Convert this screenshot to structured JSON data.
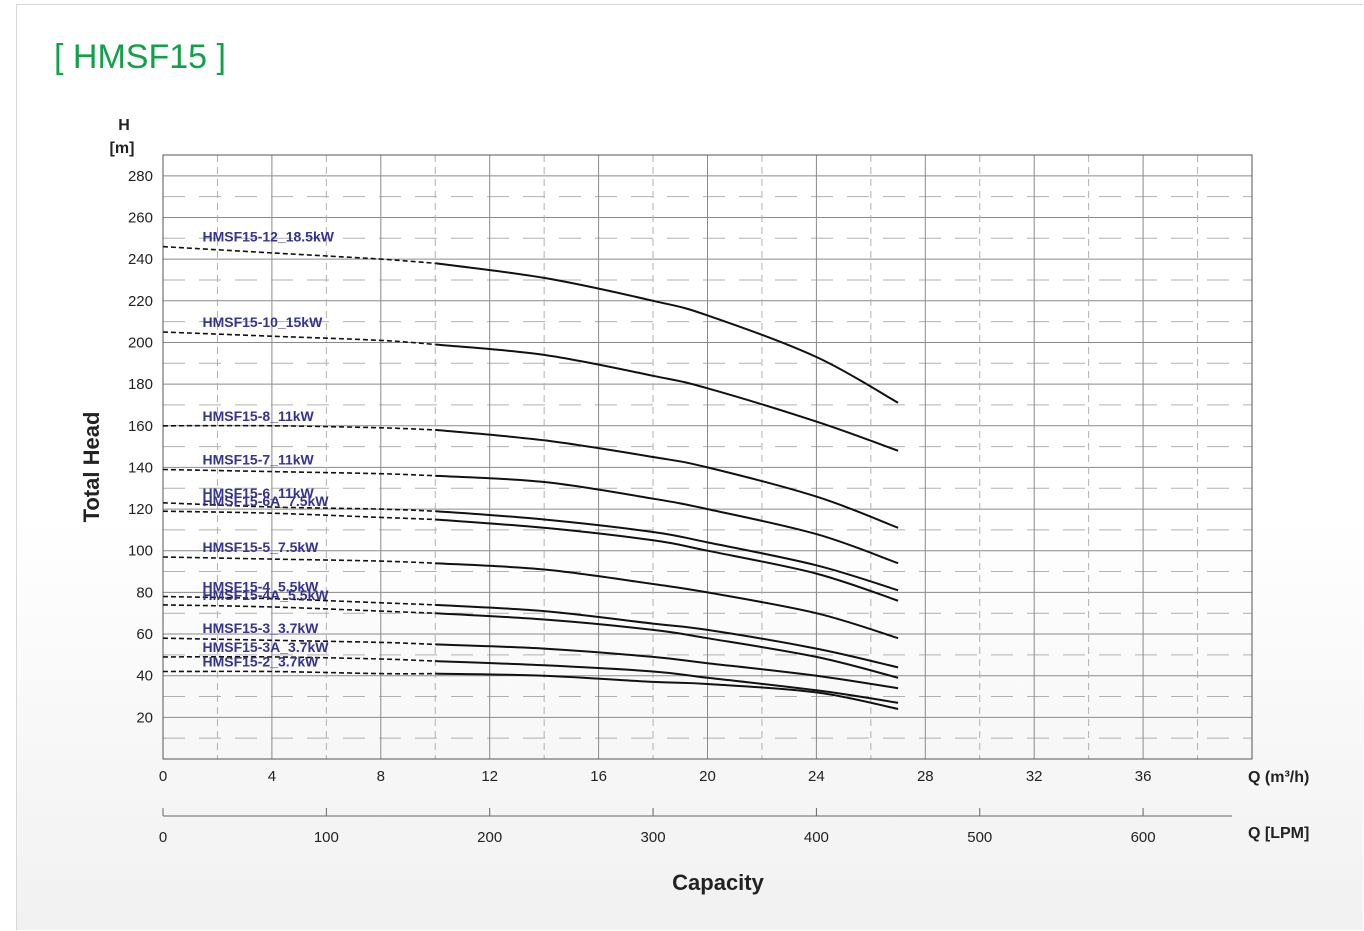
{
  "chart_data": {
    "type": "line",
    "title": "[ HMSF15 ]",
    "ylabel": "Total Head",
    "y_unit_top": "H",
    "y_unit_bottom": "[m]",
    "xlabel": "Capacity",
    "x_unit_primary": "Q (m³/h)",
    "x_unit_secondary": "Q [LPM]",
    "xlim": [
      0,
      40
    ],
    "ylim": [
      0,
      290
    ],
    "x_ticks": [
      0,
      4,
      8,
      12,
      16,
      20,
      24,
      28,
      32,
      36
    ],
    "y_ticks": [
      20,
      40,
      60,
      80,
      100,
      120,
      140,
      160,
      180,
      200,
      220,
      240,
      260,
      280
    ],
    "lpm_ticks": [
      0,
      100,
      200,
      300,
      400,
      500,
      600
    ],
    "grid": true,
    "dashed_until_x": 10,
    "series": [
      {
        "name": "HMSF15-12_18.5kW",
        "x": [
          0,
          4,
          8,
          10,
          14,
          18,
          20,
          24,
          27
        ],
        "y": [
          246,
          243,
          240,
          238,
          231,
          220,
          213,
          193,
          171
        ]
      },
      {
        "name": "HMSF15-10_15kW",
        "x": [
          0,
          4,
          8,
          10,
          14,
          18,
          20,
          24,
          27
        ],
        "y": [
          205,
          203,
          201,
          199,
          194,
          184,
          178,
          162,
          148
        ]
      },
      {
        "name": "HMSF15-8_11kW",
        "x": [
          0,
          4,
          8,
          10,
          14,
          18,
          20,
          24,
          27
        ],
        "y": [
          160,
          160,
          159,
          158,
          153,
          145,
          140,
          126,
          111
        ]
      },
      {
        "name": "HMSF15-7_11kW",
        "x": [
          0,
          4,
          8,
          10,
          14,
          18,
          20,
          24,
          27
        ],
        "y": [
          139,
          138,
          137,
          136,
          133,
          125,
          120,
          108,
          94
        ]
      },
      {
        "name": "HMSF15-6_11kW",
        "x": [
          0,
          4,
          8,
          10,
          14,
          18,
          20,
          24,
          27
        ],
        "y": [
          123,
          121,
          120,
          119,
          115,
          109,
          104,
          93,
          81
        ]
      },
      {
        "name": "HMSF15-6A_7.5kW",
        "x": [
          0,
          4,
          8,
          10,
          14,
          18,
          20,
          24,
          27
        ],
        "y": [
          119,
          118,
          116,
          115,
          111,
          105,
          100,
          89,
          76
        ]
      },
      {
        "name": "HMSF15-5_7.5kW",
        "x": [
          0,
          4,
          8,
          10,
          14,
          18,
          20,
          24,
          27
        ],
        "y": [
          97,
          96,
          95,
          94,
          91,
          84,
          80,
          70,
          58
        ]
      },
      {
        "name": "HMSF15-4_5.5kW",
        "x": [
          0,
          4,
          8,
          10,
          14,
          18,
          20,
          24,
          27
        ],
        "y": [
          78,
          77,
          75,
          74,
          71,
          65,
          62,
          53,
          44
        ]
      },
      {
        "name": "HMSF15-4A_5.5kW",
        "x": [
          0,
          4,
          8,
          10,
          14,
          18,
          20,
          24,
          27
        ],
        "y": [
          74,
          73,
          71,
          70,
          67,
          62,
          58,
          49,
          39
        ]
      },
      {
        "name": "HMSF15-3_3.7kW",
        "x": [
          0,
          4,
          8,
          10,
          14,
          18,
          20,
          24,
          27
        ],
        "y": [
          58,
          57,
          56,
          55,
          53,
          49,
          46,
          40,
          34
        ]
      },
      {
        "name": "HMSF15-3A_3.7kW",
        "x": [
          0,
          4,
          8,
          10,
          14,
          18,
          20,
          24,
          27
        ],
        "y": [
          49,
          49,
          48,
          47,
          45,
          42,
          39,
          33,
          27
        ]
      },
      {
        "name": "HMSF15-2_3.7kW",
        "x": [
          0,
          4,
          8,
          10,
          14,
          18,
          20,
          24,
          27
        ],
        "y": [
          42,
          42,
          41,
          41,
          40,
          37,
          36,
          32,
          24
        ]
      }
    ]
  }
}
